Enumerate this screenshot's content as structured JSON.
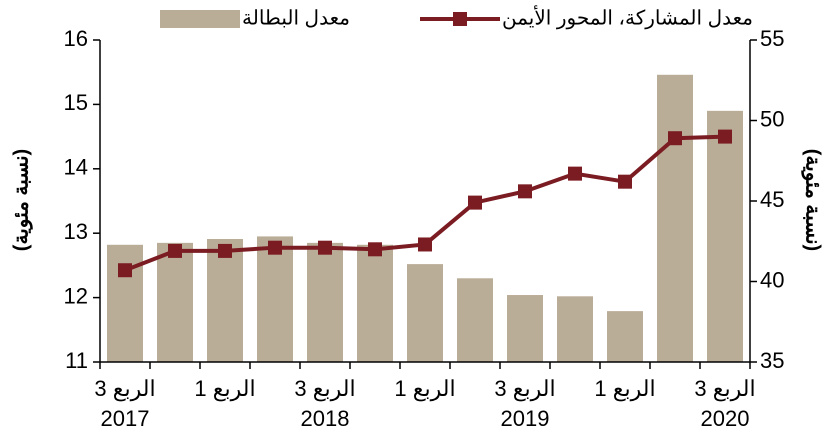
{
  "chart_data": {
    "type": "bar_line",
    "categories": [
      "الربع 3",
      null,
      "الربع 1",
      null,
      "الربع 3",
      null,
      "الربع 1",
      null,
      "الربع 3",
      null,
      "الربع 1",
      null,
      "الربع 3"
    ],
    "year_labels": [
      "2017",
      null,
      null,
      null,
      "2018",
      null,
      null,
      null,
      "2019",
      null,
      null,
      null,
      "2020"
    ],
    "series": [
      {
        "name": "معدل البطالة",
        "type": "bar",
        "color": "#baad97",
        "axis": "y",
        "values": [
          12.82,
          12.85,
          12.91,
          12.95,
          12.85,
          12.82,
          12.52,
          12.3,
          12.04,
          12.02,
          11.79,
          15.46,
          14.9
        ]
      },
      {
        "name": "معدل المشاركة، المحور الأيمن",
        "type": "line",
        "color": "#7b1c23",
        "axis": "y2",
        "values": [
          40.7,
          41.9,
          41.9,
          42.1,
          42.1,
          42.0,
          42.3,
          44.9,
          45.6,
          46.7,
          46.2,
          48.9,
          49.0
        ]
      }
    ],
    "ylabel": "(نسبة مئوية)",
    "y2label": "(نسبة مئوية)",
    "ylim": [
      11,
      16
    ],
    "yticks": [
      11,
      12,
      13,
      14,
      15,
      16
    ],
    "y2lim": [
      35,
      55
    ],
    "y2ticks": [
      35,
      40,
      45,
      50,
      55
    ]
  }
}
